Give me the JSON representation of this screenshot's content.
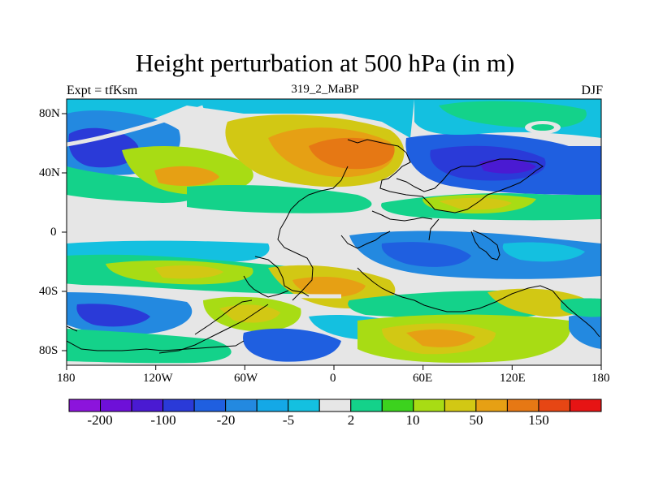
{
  "figure": {
    "title": "Height perturbation at 500 hPa (in m)",
    "left_label": "Expt = tfKsm",
    "center_label": "319_2_MaBP",
    "right_label": "DJF"
  },
  "map": {
    "lon_ticks": [
      "180",
      "120W",
      "60W",
      "0",
      "60E",
      "120E",
      "180"
    ],
    "lat_ticks": [
      "80N",
      "40N",
      "0",
      "40S",
      "80S"
    ],
    "background_color": "#e6e6e6",
    "coast_color": "#000000"
  },
  "colorbar": {
    "colors": [
      "#8c14dc",
      "#6e10d8",
      "#4a1ad2",
      "#2a3ad8",
      "#1f5fe0",
      "#2389e0",
      "#14a8e6",
      "#14c0e0",
      "#e6e6e6",
      "#14d28a",
      "#3cd21e",
      "#a8dc14",
      "#d2c814",
      "#e6a014",
      "#e67814",
      "#e64614",
      "#e61414"
    ],
    "labels": [
      "-200",
      "-100",
      "-20",
      "-5",
      "2",
      "10",
      "50",
      "150"
    ]
  },
  "icons": {
    "continent_outline": "coastline-icon"
  }
}
